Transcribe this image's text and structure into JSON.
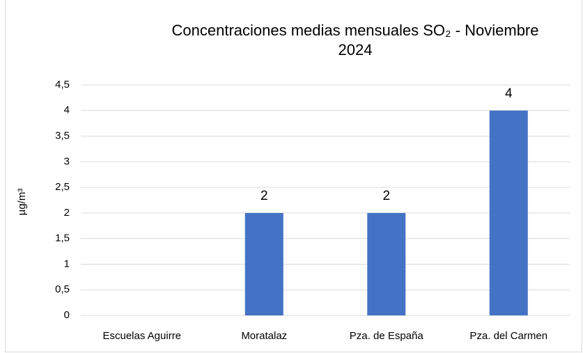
{
  "chart_data": {
    "type": "bar",
    "title": "Concentraciones medias mensuales SO₂ - Noviembre 2024",
    "y_label": "µg/m³",
    "categories": [
      "Escuelas Aguirre",
      "Moratalaz",
      "Pza. de España",
      "Pza. del Carmen"
    ],
    "values": [
      null,
      2,
      2,
      4
    ],
    "color": "#4472c4",
    "ylim": [
      0,
      4.5
    ],
    "yticks": [
      0,
      {
        "value": 0.5,
        "label": "0,5"
      },
      1,
      {
        "value": 1.5,
        "label": "1,5"
      },
      2,
      {
        "value": 2.5,
        "label": "2,5"
      },
      3,
      {
        "value": 3.5,
        "label": "3,5"
      },
      4,
      {
        "value": 4.5,
        "label": "4,5"
      }
    ],
    "grid": true
  }
}
